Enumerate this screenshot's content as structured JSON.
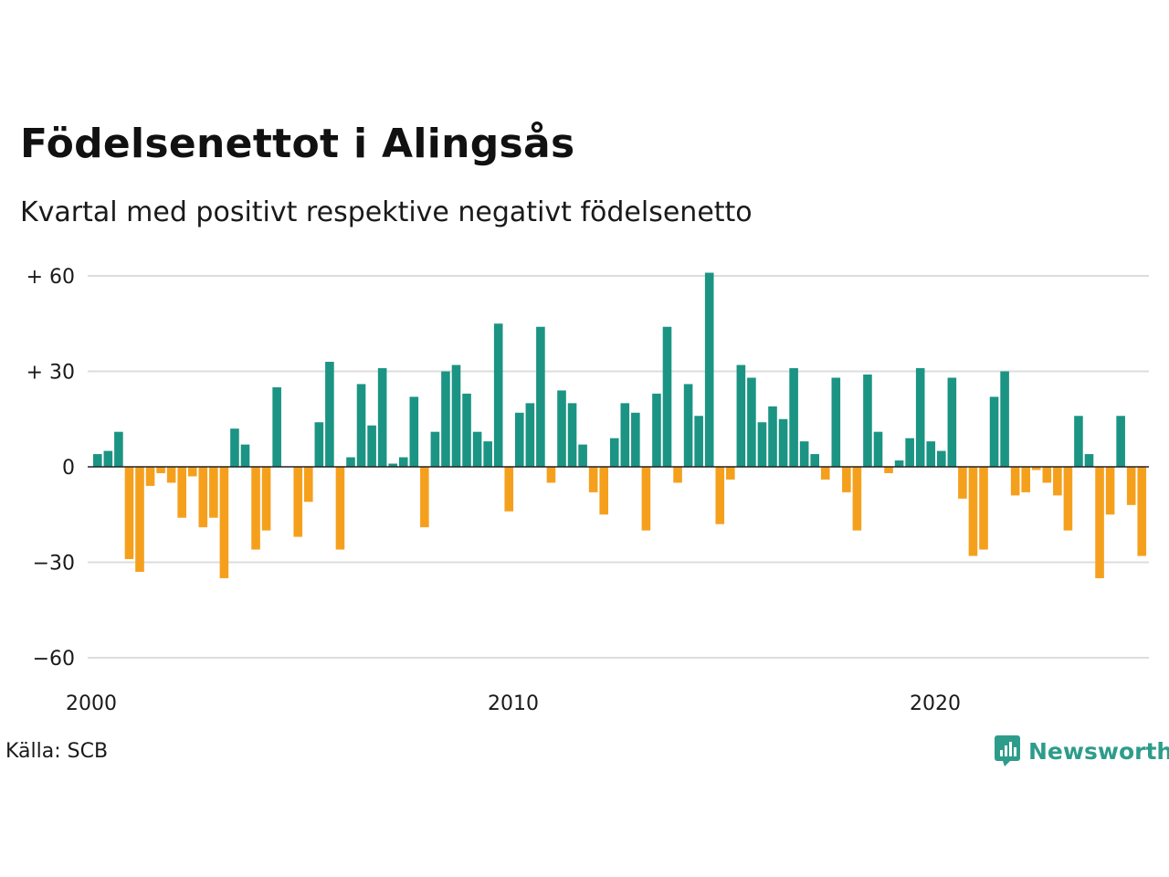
{
  "title": "Födelsenettot i Alingsås",
  "subtitle": "Kvartal med positivt respektive negativt födelsenetto",
  "source": "Källa: SCB",
  "brand": "Newsworthy",
  "colors": {
    "positive": "#1b9484",
    "negative": "#f5a01d",
    "grid": "#dddddd",
    "zero": "#222222",
    "brand": "#2e9c8b"
  },
  "chart_data": {
    "type": "bar",
    "x_start_year": 2000,
    "x_ticks": [
      "2000",
      "2010",
      "2020"
    ],
    "y_ticks": [
      {
        "value": 60,
        "label": "+ 60"
      },
      {
        "value": 30,
        "label": "+ 30"
      },
      {
        "value": 0,
        "label": "0"
      },
      {
        "value": -30,
        "label": "−30"
      },
      {
        "value": -60,
        "label": "−60"
      }
    ],
    "ylim": [
      -60,
      60
    ],
    "grid": true,
    "values": [
      4,
      5,
      11,
      -29,
      -33,
      -6,
      -2,
      -5,
      -16,
      -3,
      -19,
      -16,
      -35,
      12,
      7,
      -26,
      -20,
      25,
      0,
      -22,
      -11,
      14,
      33,
      -26,
      3,
      26,
      13,
      31,
      1,
      3,
      22,
      -19,
      11,
      30,
      32,
      23,
      11,
      8,
      45,
      -14,
      17,
      20,
      44,
      -5,
      24,
      20,
      7,
      -8,
      -15,
      9,
      20,
      17,
      -20,
      23,
      44,
      -5,
      26,
      16,
      61,
      -18,
      -4,
      32,
      28,
      14,
      19,
      15,
      31,
      8,
      4,
      -4,
      28,
      -8,
      -20,
      29,
      11,
      -2,
      2,
      9,
      31,
      8,
      5,
      28,
      -10,
      -28,
      -26,
      22,
      30,
      -9,
      -8,
      -1,
      -5,
      -9,
      -20,
      16,
      4,
      -35,
      -15,
      16,
      -12,
      -28
    ]
  }
}
